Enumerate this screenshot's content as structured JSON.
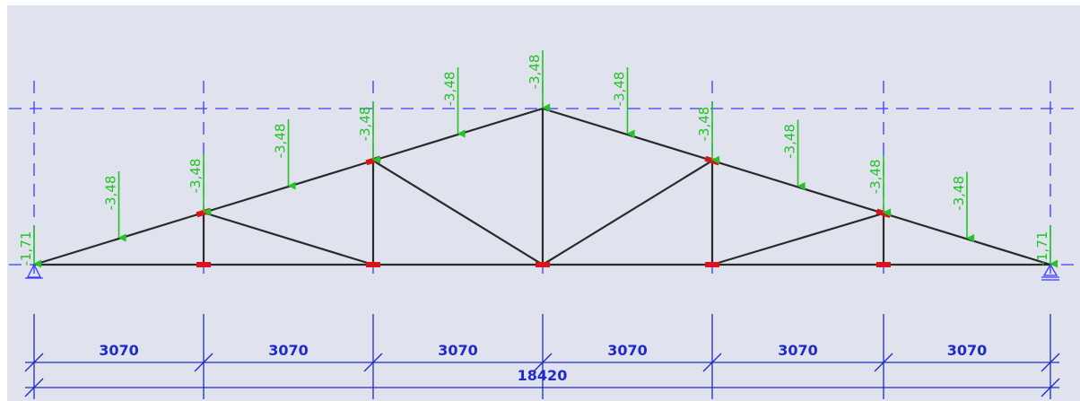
{
  "diagram": {
    "colors": {
      "background": "#e0e3ee",
      "member": "#2a2a2a",
      "node_marker": "#d8131c",
      "load": "#22c426",
      "dimension": "#1f2bc8",
      "grid": "#3a3aff"
    },
    "span_labels": [
      "3070",
      "3070",
      "3070",
      "3070",
      "3070",
      "3070"
    ],
    "total_label": "18420",
    "node_loads": [
      {
        "node": "support-left",
        "label": "-1,71"
      },
      {
        "node": "top-1",
        "label": "-3,48"
      },
      {
        "node": "top-2",
        "label": "-3,48"
      },
      {
        "node": "apex",
        "label": "-3,48"
      },
      {
        "node": "top-4",
        "label": "-3,48"
      },
      {
        "node": "top-5",
        "label": "-3,48"
      },
      {
        "node": "support-right",
        "label": "-1,71"
      }
    ],
    "member_loads": [
      {
        "member": "top-chord-1",
        "label": "-3,48"
      },
      {
        "member": "top-chord-2",
        "label": "-3,48"
      },
      {
        "member": "top-chord-3",
        "label": "-3,48"
      },
      {
        "member": "top-chord-4",
        "label": "-3,48"
      },
      {
        "member": "top-chord-5",
        "label": "-3,48"
      },
      {
        "member": "top-chord-6",
        "label": "-3,48"
      }
    ],
    "icons": [
      "pin-support-icon",
      "roller-support-icon"
    ]
  }
}
